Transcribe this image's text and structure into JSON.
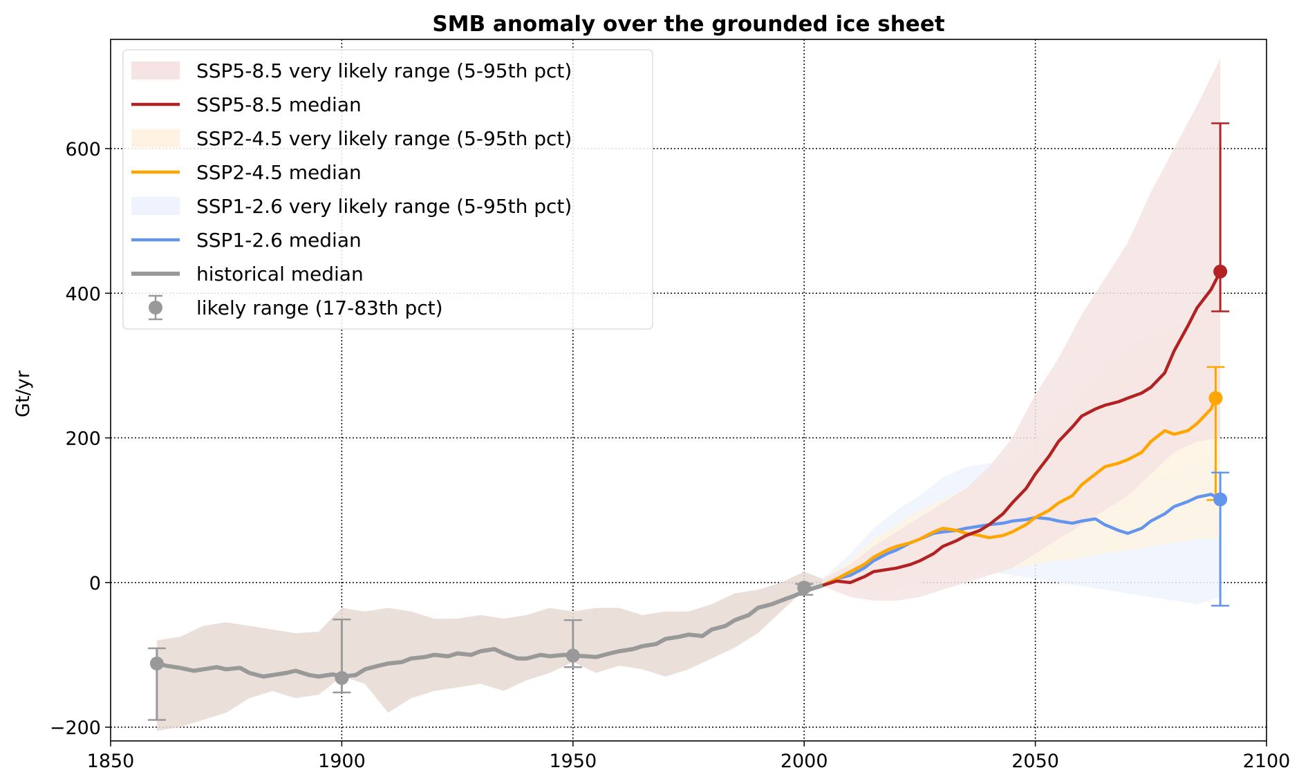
{
  "chart_data": {
    "type": "line",
    "title": "SMB anomaly over the grounded ice sheet",
    "xlabel": "",
    "ylabel": "Gt/yr",
    "xlim": [
      1850,
      2100
    ],
    "ylim": [
      -219,
      751
    ],
    "xticks": [
      1850,
      1900,
      1950,
      2000,
      2050,
      2100
    ],
    "yticks": [
      -200,
      0,
      200,
      400,
      600
    ],
    "ytick_labels": [
      "−200",
      "0",
      "200",
      "400",
      "600"
    ],
    "grid": true,
    "legend_position": "top-left",
    "legend": [
      {
        "label": "SSP5-8.5 very likely range (5-95th pct)",
        "kind": "band",
        "color": "#f5e4e3"
      },
      {
        "label": "SSP5-8.5 median",
        "kind": "line",
        "color": "#b22222"
      },
      {
        "label": "SSP2-4.5 very likely range (5-95th pct)",
        "kind": "band",
        "color": "#fef3e2"
      },
      {
        "label": "SSP2-4.5 median",
        "kind": "line",
        "color": "#ffa500"
      },
      {
        "label": "SSP1-2.6 very likely range (5-95th pct)",
        "kind": "band",
        "color": "#eef3fd"
      },
      {
        "label": "SSP1-2.6 median",
        "kind": "line",
        "color": "#6495ed"
      },
      {
        "label": "historical median",
        "kind": "line",
        "color": "#999999"
      },
      {
        "label": "likely range (17-83th pct)",
        "kind": "errorbar",
        "color": "#999999"
      }
    ],
    "bands": [
      {
        "name": "historical very likely range",
        "color": "#e8d9d3",
        "x": [
          1860,
          1865,
          1870,
          1875,
          1880,
          1885,
          1890,
          1895,
          1900,
          1905,
          1910,
          1915,
          1920,
          1925,
          1930,
          1935,
          1940,
          1945,
          1950,
          1955,
          1960,
          1965,
          1970,
          1975,
          1980,
          1985,
          1990,
          1995,
          2000,
          2004
        ],
        "lower": [
          -205,
          -200,
          -190,
          -180,
          -160,
          -150,
          -160,
          -155,
          -130,
          -140,
          -180,
          -160,
          -150,
          -145,
          -140,
          -150,
          -135,
          -125,
          -110,
          -125,
          -115,
          -120,
          -130,
          -120,
          -105,
          -90,
          -70,
          -40,
          -10,
          -5
        ],
        "upper": [
          -80,
          -75,
          -60,
          -55,
          -60,
          -65,
          -70,
          -68,
          -35,
          -40,
          -35,
          -40,
          -50,
          -50,
          -45,
          -50,
          -45,
          -35,
          -40,
          -35,
          -35,
          -45,
          -40,
          -40,
          -30,
          -15,
          -10,
          0,
          15,
          5
        ]
      },
      {
        "name": "SSP1-2.6 very likely range",
        "color": "#eef3fd",
        "x": [
          2004,
          2010,
          2015,
          2020,
          2025,
          2030,
          2035,
          2040,
          2045,
          2050,
          2055,
          2060,
          2065,
          2070,
          2075,
          2080,
          2085,
          2090
        ],
        "lower": [
          -5,
          -10,
          -15,
          -10,
          0,
          10,
          15,
          15,
          10,
          5,
          0,
          -5,
          -10,
          -15,
          -20,
          -25,
          -30,
          -20
        ],
        "upper": [
          5,
          40,
          75,
          100,
          120,
          145,
          160,
          165,
          160,
          155,
          150,
          150,
          145,
          140,
          145,
          150,
          165,
          175
        ]
      },
      {
        "name": "SSP2-4.5 very likely range",
        "color": "#fef3e2",
        "x": [
          2004,
          2010,
          2015,
          2020,
          2025,
          2030,
          2035,
          2040,
          2045,
          2050,
          2055,
          2060,
          2065,
          2070,
          2075,
          2080,
          2085,
          2090
        ],
        "lower": [
          -5,
          -10,
          -10,
          -5,
          0,
          5,
          10,
          15,
          20,
          25,
          30,
          35,
          40,
          45,
          50,
          55,
          60,
          60
        ],
        "upper": [
          5,
          30,
          60,
          80,
          100,
          115,
          130,
          150,
          170,
          200,
          235,
          270,
          300,
          325,
          340,
          355,
          370,
          410
        ]
      },
      {
        "name": "SSP5-8.5 very likely range",
        "color": "#f5e4e3",
        "x": [
          2004,
          2010,
          2015,
          2020,
          2025,
          2030,
          2035,
          2040,
          2045,
          2050,
          2055,
          2060,
          2065,
          2070,
          2075,
          2080,
          2085,
          2090
        ],
        "lower": [
          -5,
          -20,
          -25,
          -25,
          -20,
          -10,
          0,
          10,
          20,
          40,
          60,
          80,
          100,
          120,
          150,
          180,
          195,
          200
        ],
        "upper": [
          5,
          25,
          50,
          70,
          90,
          110,
          130,
          160,
          200,
          260,
          310,
          370,
          420,
          470,
          540,
          600,
          660,
          725
        ]
      }
    ],
    "series": [
      {
        "name": "historical median",
        "color": "#999999",
        "x": [
          1860,
          1862,
          1865,
          1868,
          1870,
          1873,
          1875,
          1878,
          1880,
          1883,
          1885,
          1888,
          1890,
          1893,
          1895,
          1898,
          1900,
          1903,
          1905,
          1908,
          1910,
          1913,
          1915,
          1918,
          1920,
          1923,
          1925,
          1928,
          1930,
          1933,
          1935,
          1938,
          1940,
          1943,
          1945,
          1948,
          1950,
          1953,
          1955,
          1958,
          1960,
          1963,
          1965,
          1968,
          1970,
          1973,
          1975,
          1978,
          1980,
          1983,
          1985,
          1988,
          1990,
          1993,
          1995,
          1998,
          2000,
          2002,
          2004
        ],
        "values": [
          -112,
          -115,
          -118,
          -122,
          -120,
          -117,
          -120,
          -118,
          -125,
          -130,
          -128,
          -125,
          -122,
          -128,
          -130,
          -127,
          -130,
          -128,
          -120,
          -115,
          -112,
          -110,
          -105,
          -103,
          -100,
          -102,
          -98,
          -100,
          -95,
          -92,
          -98,
          -105,
          -105,
          -100,
          -102,
          -100,
          -101,
          -102,
          -103,
          -98,
          -95,
          -92,
          -88,
          -85,
          -78,
          -75,
          -72,
          -74,
          -65,
          -60,
          -52,
          -45,
          -35,
          -30,
          -25,
          -18,
          -12,
          -8,
          -4
        ]
      },
      {
        "name": "SSP1-2.6 median",
        "color": "#6495ed",
        "x": [
          2004,
          2007,
          2010,
          2013,
          2015,
          2018,
          2020,
          2023,
          2025,
          2028,
          2030,
          2033,
          2035,
          2038,
          2040,
          2043,
          2045,
          2048,
          2050,
          2053,
          2055,
          2058,
          2060,
          2063,
          2065,
          2068,
          2070,
          2073,
          2075,
          2078,
          2080,
          2083,
          2085,
          2088,
          2090
        ],
        "values": [
          -4,
          5,
          10,
          20,
          30,
          40,
          45,
          55,
          60,
          68,
          70,
          72,
          75,
          78,
          80,
          82,
          85,
          87,
          90,
          88,
          85,
          82,
          85,
          88,
          80,
          72,
          68,
          75,
          85,
          95,
          105,
          112,
          118,
          122,
          115
        ]
      },
      {
        "name": "SSP2-4.5 median",
        "color": "#ffa500",
        "x": [
          2004,
          2007,
          2010,
          2013,
          2015,
          2018,
          2020,
          2023,
          2025,
          2028,
          2030,
          2033,
          2035,
          2038,
          2040,
          2043,
          2045,
          2048,
          2050,
          2053,
          2055,
          2058,
          2060,
          2063,
          2065,
          2068,
          2070,
          2073,
          2075,
          2078,
          2080,
          2083,
          2085,
          2088,
          2089
        ],
        "values": [
          -4,
          5,
          15,
          25,
          35,
          45,
          50,
          55,
          60,
          70,
          75,
          72,
          68,
          65,
          62,
          65,
          70,
          80,
          90,
          100,
          110,
          120,
          135,
          150,
          160,
          165,
          170,
          180,
          195,
          210,
          205,
          210,
          220,
          240,
          255
        ]
      },
      {
        "name": "SSP5-8.5 median",
        "color": "#b22222",
        "x": [
          2004,
          2007,
          2010,
          2013,
          2015,
          2018,
          2020,
          2023,
          2025,
          2028,
          2030,
          2033,
          2035,
          2038,
          2040,
          2043,
          2045,
          2048,
          2050,
          2053,
          2055,
          2058,
          2060,
          2063,
          2065,
          2068,
          2070,
          2073,
          2075,
          2078,
          2080,
          2083,
          2085,
          2088,
          2090
        ],
        "values": [
          -4,
          2,
          0,
          8,
          15,
          18,
          20,
          25,
          30,
          40,
          50,
          58,
          65,
          72,
          80,
          95,
          110,
          130,
          150,
          175,
          195,
          215,
          230,
          240,
          245,
          250,
          255,
          262,
          270,
          290,
          320,
          355,
          380,
          405,
          430
        ]
      }
    ],
    "errorbars": [
      {
        "x": 1860,
        "y": -112,
        "low": -190,
        "high": -91,
        "color": "#999999"
      },
      {
        "x": 1900,
        "y": -132,
        "low": -152,
        "high": -51,
        "color": "#999999"
      },
      {
        "x": 1950,
        "y": -101,
        "low": -117,
        "high": -52,
        "color": "#999999"
      },
      {
        "x": 2000,
        "y": -7,
        "low": -17,
        "high": -2,
        "color": "#999999"
      },
      {
        "x": 2090,
        "y": 430,
        "low": 375,
        "high": 635,
        "color": "#b22222"
      },
      {
        "x": 2089,
        "y": 255,
        "low": 114,
        "high": 298,
        "color": "#ffa500"
      },
      {
        "x": 2090,
        "y": 115,
        "low": -32,
        "high": 152,
        "color": "#6495ed"
      }
    ]
  }
}
